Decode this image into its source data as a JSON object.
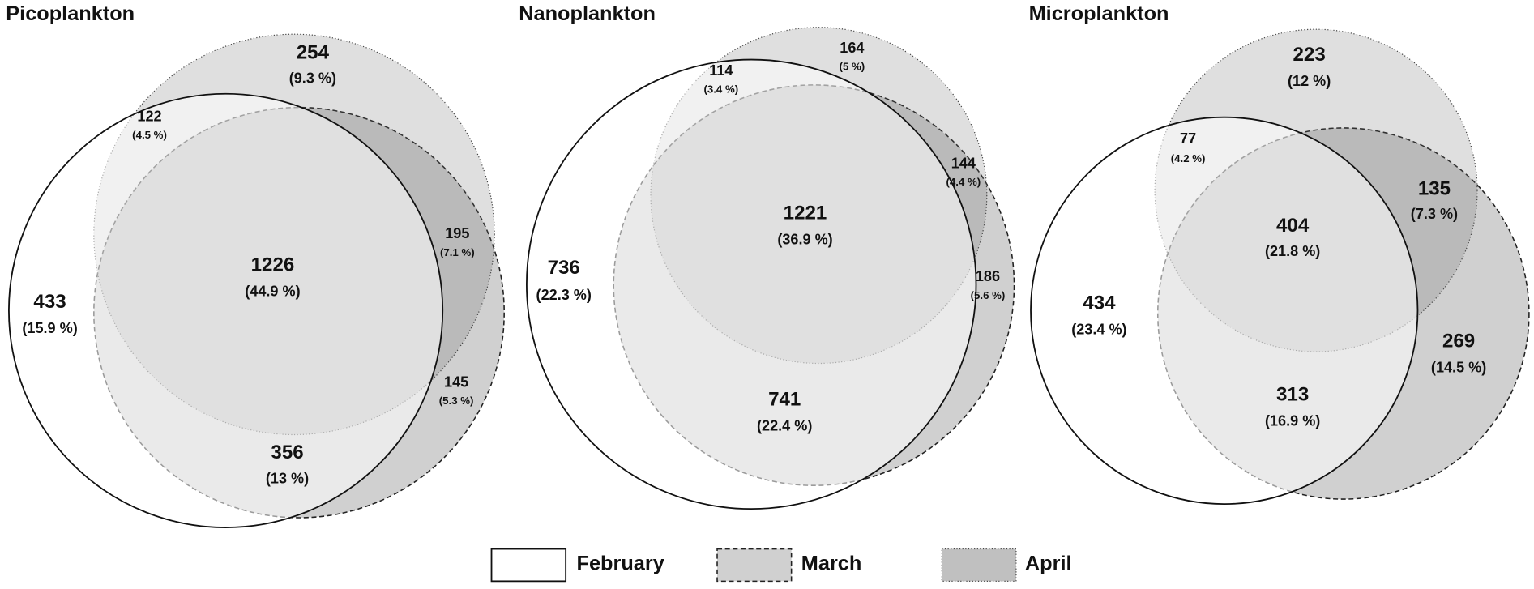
{
  "panels": [
    {
      "title": "Picoplankton",
      "regions": [
        {
          "count": 254,
          "percent": "(9.3 %)"
        },
        {
          "count": 122,
          "percent": "(4.5 %)"
        },
        {
          "count": 195,
          "percent": "(7.1 %)"
        },
        {
          "count": 1226,
          "percent": "(44.9 %)"
        },
        {
          "count": 433,
          "percent": "(15.9 %)"
        },
        {
          "count": 145,
          "percent": "(5.3 %)"
        },
        {
          "count": 356,
          "percent": "(13 %)"
        }
      ]
    },
    {
      "title": "Nanoplankton",
      "regions": [
        {
          "count": 164,
          "percent": "(5 %)"
        },
        {
          "count": 114,
          "percent": "(3.4 %)"
        },
        {
          "count": 144,
          "percent": "(4.4 %)"
        },
        {
          "count": 1221,
          "percent": "(36.9 %)"
        },
        {
          "count": 736,
          "percent": "(22.3 %)"
        },
        {
          "count": 186,
          "percent": "(5.6 %)"
        },
        {
          "count": 741,
          "percent": "(22.4 %)"
        }
      ]
    },
    {
      "title": "Microplankton",
      "regions": [
        {
          "count": 223,
          "percent": "(12 %)"
        },
        {
          "count": 77,
          "percent": "(4.2 %)"
        },
        {
          "count": 135,
          "percent": "(7.3 %)"
        },
        {
          "count": 404,
          "percent": "(21.8 %)"
        },
        {
          "count": 434,
          "percent": "(23.4 %)"
        },
        {
          "count": 269,
          "percent": "(14.5 %)"
        },
        {
          "count": 313,
          "percent": "(16.9 %)"
        }
      ]
    }
  ],
  "legend": [
    "February",
    "March",
    "April"
  ]
}
